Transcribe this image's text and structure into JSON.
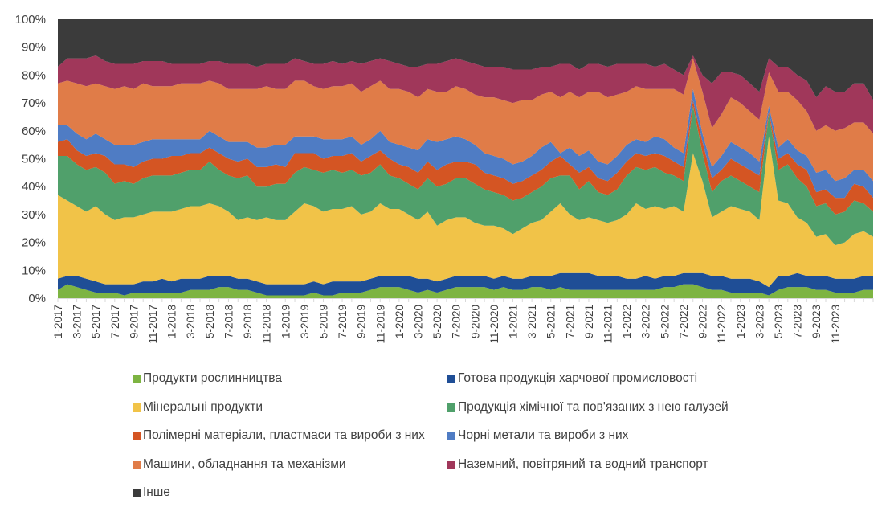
{
  "chart_data": {
    "type": "area",
    "stacked": true,
    "percent": true,
    "title": "",
    "xlabel": "",
    "ylabel": "",
    "ylim": [
      0,
      100
    ],
    "yticks": [
      "0%",
      "10%",
      "20%",
      "30%",
      "40%",
      "50%",
      "60%",
      "70%",
      "80%",
      "90%",
      "100%"
    ],
    "xtick_labels": [
      "1-2017",
      "3-2017",
      "5-2017",
      "7-2017",
      "9-2017",
      "11-2017",
      "1-2018",
      "3-2018",
      "5-2018",
      "7-2018",
      "9-2018",
      "11-2018",
      "1-2019",
      "3-2019",
      "5-2019",
      "7-2019",
      "9-2019",
      "11-2019",
      "1-2020",
      "3-2020",
      "5-2020",
      "7-2020",
      "9-2020",
      "11-2020",
      "1-2021",
      "3-2021",
      "5-2021",
      "7-2021",
      "9-2021",
      "11-2021",
      "1-2022",
      "3-2022",
      "5-2022",
      "7-2022",
      "9-2022",
      "11-2022",
      "1-2023",
      "3-2023",
      "5-2023",
      "7-2023",
      "9-2023",
      "11-2023"
    ],
    "x_start": "1-2017",
    "x_end": "12-2023",
    "n_points": 84,
    "grid": false,
    "legend_position": "bottom",
    "cumulative_tops": [
      [
        3,
        7,
        37,
        51,
        56,
        62,
        77,
        83
      ],
      [
        5,
        8,
        35,
        51,
        57,
        62,
        78,
        86
      ],
      [
        4,
        8,
        33,
        48,
        53,
        59,
        77,
        86
      ],
      [
        3,
        7,
        31,
        46,
        51,
        57,
        76,
        86
      ],
      [
        2,
        6,
        33,
        47,
        52,
        59,
        77,
        87
      ],
      [
        2,
        5,
        30,
        45,
        51,
        57,
        76,
        85
      ],
      [
        2,
        5,
        28,
        41,
        48,
        55,
        75,
        84
      ],
      [
        1,
        5,
        29,
        42,
        48,
        55,
        76,
        84
      ],
      [
        2,
        5,
        29,
        41,
        47,
        55,
        75,
        84
      ],
      [
        2,
        6,
        30,
        43,
        49,
        56,
        77,
        85
      ],
      [
        2,
        6,
        31,
        44,
        50,
        57,
        76,
        85
      ],
      [
        2,
        7,
        31,
        44,
        50,
        57,
        76,
        85
      ],
      [
        2,
        6,
        31,
        44,
        51,
        57,
        76,
        84
      ],
      [
        2,
        7,
        32,
        45,
        51,
        57,
        77,
        84
      ],
      [
        3,
        7,
        33,
        46,
        52,
        57,
        77,
        84
      ],
      [
        3,
        7,
        33,
        46,
        52,
        57,
        77,
        84
      ],
      [
        3,
        8,
        34,
        49,
        54,
        60,
        78,
        85
      ],
      [
        4,
        8,
        33,
        46,
        52,
        58,
        77,
        85
      ],
      [
        4,
        8,
        31,
        44,
        50,
        56,
        75,
        84
      ],
      [
        3,
        7,
        28,
        43,
        49,
        56,
        75,
        84
      ],
      [
        3,
        7,
        29,
        44,
        50,
        56,
        75,
        84
      ],
      [
        2,
        6,
        28,
        40,
        47,
        54,
        75,
        83
      ],
      [
        1,
        5,
        29,
        40,
        47,
        54,
        76,
        84
      ],
      [
        1,
        5,
        28,
        41,
        48,
        55,
        75,
        84
      ],
      [
        1,
        5,
        28,
        41,
        47,
        55,
        75,
        84
      ],
      [
        1,
        5,
        31,
        45,
        52,
        58,
        78,
        86
      ],
      [
        1,
        5,
        34,
        47,
        52,
        58,
        78,
        85
      ],
      [
        2,
        6,
        33,
        46,
        52,
        58,
        76,
        84
      ],
      [
        1,
        5,
        31,
        45,
        50,
        57,
        75,
        84
      ],
      [
        1,
        6,
        32,
        46,
        51,
        57,
        76,
        85
      ],
      [
        2,
        6,
        32,
        45,
        51,
        57,
        76,
        84
      ],
      [
        2,
        6,
        33,
        46,
        52,
        58,
        77,
        85
      ],
      [
        2,
        6,
        30,
        44,
        49,
        55,
        74,
        84
      ],
      [
        3,
        7,
        31,
        45,
        51,
        57,
        76,
        85
      ],
      [
        4,
        8,
        34,
        48,
        53,
        60,
        78,
        86
      ],
      [
        4,
        8,
        32,
        44,
        50,
        56,
        75,
        85
      ],
      [
        4,
        8,
        32,
        43,
        48,
        55,
        75,
        84
      ],
      [
        3,
        8,
        30,
        41,
        47,
        54,
        74,
        83
      ],
      [
        2,
        7,
        28,
        39,
        45,
        53,
        72,
        83
      ],
      [
        3,
        7,
        31,
        43,
        49,
        57,
        75,
        84
      ],
      [
        2,
        6,
        26,
        40,
        46,
        56,
        74,
        84
      ],
      [
        3,
        7,
        28,
        41,
        48,
        57,
        74,
        85
      ],
      [
        4,
        8,
        29,
        43,
        49,
        58,
        76,
        86
      ],
      [
        4,
        8,
        29,
        43,
        49,
        57,
        75,
        85
      ],
      [
        4,
        8,
        27,
        41,
        48,
        55,
        73,
        84
      ],
      [
        4,
        8,
        26,
        39,
        45,
        52,
        72,
        83
      ],
      [
        3,
        7,
        26,
        38,
        44,
        51,
        72,
        83
      ],
      [
        4,
        8,
        25,
        37,
        43,
        50,
        71,
        83
      ],
      [
        3,
        7,
        23,
        35,
        41,
        48,
        70,
        82
      ],
      [
        3,
        7,
        25,
        36,
        42,
        49,
        71,
        82
      ],
      [
        4,
        8,
        27,
        38,
        44,
        51,
        71,
        82
      ],
      [
        4,
        8,
        28,
        40,
        46,
        54,
        73,
        83
      ],
      [
        3,
        8,
        31,
        43,
        49,
        56,
        74,
        83
      ],
      [
        4,
        9,
        34,
        44,
        51,
        52,
        72,
        84
      ],
      [
        3,
        9,
        30,
        44,
        48,
        54,
        74,
        84
      ],
      [
        3,
        9,
        28,
        39,
        45,
        51,
        72,
        82
      ],
      [
        3,
        9,
        29,
        42,
        47,
        53,
        74,
        84
      ],
      [
        3,
        8,
        28,
        38,
        43,
        49,
        74,
        84
      ],
      [
        3,
        8,
        27,
        37,
        42,
        48,
        72,
        83
      ],
      [
        3,
        8,
        28,
        39,
        45,
        51,
        73,
        84
      ],
      [
        3,
        7,
        30,
        44,
        49,
        55,
        74,
        84
      ],
      [
        3,
        7,
        34,
        47,
        52,
        57,
        76,
        84
      ],
      [
        3,
        8,
        32,
        46,
        51,
        56,
        75,
        84
      ],
      [
        3,
        7,
        33,
        47,
        52,
        58,
        75,
        83
      ],
      [
        4,
        8,
        32,
        45,
        51,
        57,
        75,
        84
      ],
      [
        4,
        8,
        33,
        44,
        49,
        54,
        75,
        82
      ],
      [
        5,
        9,
        31,
        42,
        47,
        52,
        73,
        80
      ],
      [
        5,
        9,
        52,
        69,
        71,
        75,
        86,
        87
      ],
      [
        4,
        9,
        42,
        52,
        56,
        59,
        74,
        80
      ],
      [
        3,
        8,
        29,
        38,
        43,
        47,
        61,
        77
      ],
      [
        3,
        8,
        31,
        42,
        46,
        51,
        66,
        81
      ],
      [
        2,
        7,
        33,
        44,
        50,
        56,
        72,
        81
      ],
      [
        2,
        7,
        32,
        42,
        48,
        54,
        70,
        80
      ],
      [
        2,
        7,
        31,
        40,
        46,
        52,
        67,
        77
      ],
      [
        2,
        6,
        28,
        38,
        44,
        49,
        64,
        74
      ],
      [
        1,
        4,
        58,
        66,
        67,
        69,
        81,
        86
      ],
      [
        3,
        8,
        35,
        46,
        50,
        54,
        74,
        83
      ],
      [
        4,
        8,
        34,
        48,
        52,
        57,
        74,
        83
      ],
      [
        4,
        9,
        29,
        43,
        48,
        53,
        71,
        80
      ],
      [
        4,
        8,
        27,
        40,
        46,
        51,
        67,
        78
      ],
      [
        3,
        8,
        22,
        33,
        38,
        45,
        60,
        72
      ],
      [
        3,
        8,
        23,
        34,
        39,
        46,
        62,
        76
      ],
      [
        2,
        7,
        19,
        30,
        36,
        42,
        60,
        74
      ],
      [
        2,
        7,
        20,
        31,
        36,
        43,
        61,
        74
      ],
      [
        2,
        7,
        23,
        35,
        41,
        46,
        63,
        77
      ],
      [
        3,
        8,
        24,
        34,
        40,
        46,
        63,
        77
      ],
      [
        3,
        8,
        22,
        31,
        36,
        42,
        59,
        71
      ]
    ],
    "series": [
      {
        "name": "Продукти рослинництва",
        "color": "#7DB442"
      },
      {
        "name": "Готова продукція харчової промисловості",
        "color": "#1F4E96"
      },
      {
        "name": "Мінеральні продукти",
        "color": "#F1C348"
      },
      {
        "name": "Продукція хімічної та пов'язаних з нею галузей",
        "color": "#50A06B"
      },
      {
        "name": "Полімерні матеріали, пластмаси та вироби з них",
        "color": "#D45523"
      },
      {
        "name": "Чорні метали та вироби з них",
        "color": "#4F7CC4"
      },
      {
        "name": "Машини, обладнання та механізми",
        "color": "#E07C48"
      },
      {
        "name": "Наземний, повітряний та водний транспорт",
        "color": "#A0375A"
      },
      {
        "name": "Інше",
        "color": "#3B3B3B"
      }
    ]
  },
  "legend": [
    {
      "label": "Продукти рослинництва",
      "color": "#7DB442"
    },
    {
      "label": "Готова продукція харчової промисловості",
      "color": "#1F4E96"
    },
    {
      "label": "Мінеральні продукти",
      "color": "#F1C348"
    },
    {
      "label": "Продукція хімічної та пов'язаних з нею галузей",
      "color": "#50A06B"
    },
    {
      "label": "Полімерні матеріали, пластмаси та вироби з них",
      "color": "#D45523"
    },
    {
      "label": "Чорні метали та вироби з них",
      "color": "#4F7CC4"
    },
    {
      "label": "Машини, обладнання та механізми",
      "color": "#E07C48"
    },
    {
      "label": "Наземний, повітряний та водний транспорт",
      "color": "#A0375A"
    },
    {
      "label": "Інше",
      "color": "#3B3B3B"
    }
  ]
}
